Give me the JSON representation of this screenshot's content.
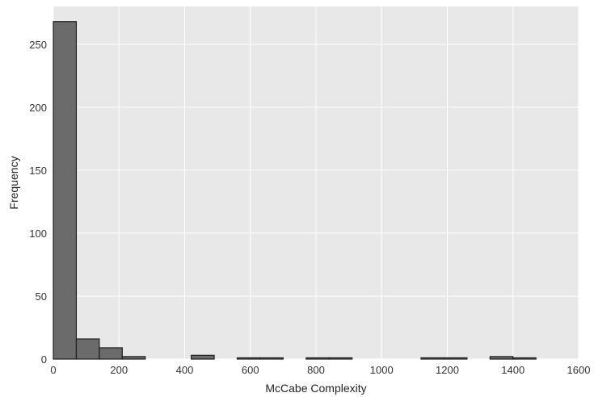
{
  "chart_data": {
    "type": "bar",
    "title": "",
    "xlabel": "McCabe Complexity",
    "ylabel": "Frequency",
    "xlim": [
      0,
      1600
    ],
    "ylim": [
      0,
      280
    ],
    "xticks": [
      0,
      200,
      400,
      600,
      800,
      1000,
      1200,
      1400,
      1600
    ],
    "yticks": [
      0,
      50,
      100,
      150,
      200,
      250
    ],
    "grid": true,
    "colors": {
      "plot_background": "#e8e8e8",
      "grid": "#ffffff",
      "bar_fill": "#6b6b6b",
      "bar_edge": "#1f1f1f"
    },
    "bins": [
      {
        "x0": 0,
        "x1": 70,
        "value": 268
      },
      {
        "x0": 70,
        "x1": 140,
        "value": 16
      },
      {
        "x0": 140,
        "x1": 210,
        "value": 9
      },
      {
        "x0": 210,
        "x1": 280,
        "value": 2
      },
      {
        "x0": 280,
        "x1": 350,
        "value": 0
      },
      {
        "x0": 350,
        "x1": 420,
        "value": 0
      },
      {
        "x0": 420,
        "x1": 490,
        "value": 3
      },
      {
        "x0": 490,
        "x1": 560,
        "value": 0
      },
      {
        "x0": 560,
        "x1": 630,
        "value": 1
      },
      {
        "x0": 630,
        "x1": 700,
        "value": 1
      },
      {
        "x0": 700,
        "x1": 770,
        "value": 0
      },
      {
        "x0": 770,
        "x1": 840,
        "value": 1
      },
      {
        "x0": 840,
        "x1": 910,
        "value": 1
      },
      {
        "x0": 910,
        "x1": 980,
        "value": 0
      },
      {
        "x0": 980,
        "x1": 1050,
        "value": 0
      },
      {
        "x0": 1050,
        "x1": 1120,
        "value": 0
      },
      {
        "x0": 1120,
        "x1": 1190,
        "value": 1
      },
      {
        "x0": 1190,
        "x1": 1260,
        "value": 1
      },
      {
        "x0": 1260,
        "x1": 1330,
        "value": 0
      },
      {
        "x0": 1330,
        "x1": 1400,
        "value": 2
      },
      {
        "x0": 1400,
        "x1": 1470,
        "value": 1
      }
    ]
  }
}
